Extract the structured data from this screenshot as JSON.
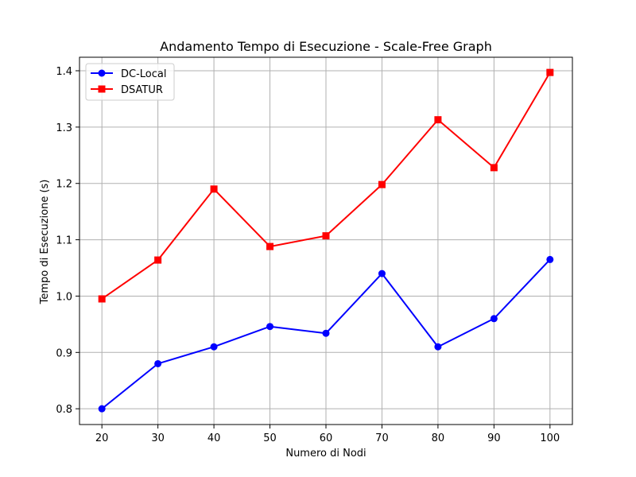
{
  "chart_data": {
    "type": "line",
    "title": "Andamento Tempo di Esecuzione - Scale-Free Graph",
    "xlabel": "Numero di Nodi",
    "ylabel": "Tempo di Esecuzione (s)",
    "x": [
      20,
      30,
      40,
      50,
      60,
      70,
      80,
      90,
      100
    ],
    "xlim": [
      16,
      104
    ],
    "ylim": [
      0.772,
      1.424
    ],
    "xticks": [
      "20",
      "30",
      "40",
      "50",
      "60",
      "70",
      "80",
      "90",
      "100"
    ],
    "xtick_values": [
      20,
      30,
      40,
      50,
      60,
      70,
      80,
      90,
      100
    ],
    "yticks": [
      "0.8",
      "0.9",
      "1.0",
      "1.1",
      "1.2",
      "1.3",
      "1.4"
    ],
    "ytick_values": [
      0.8,
      0.9,
      1.0,
      1.1,
      1.2,
      1.3,
      1.4
    ],
    "grid": true,
    "legend_position": "top-left",
    "series": [
      {
        "name": "DC-Local",
        "color": "#0000ff",
        "marker": "circle",
        "values": [
          0.8,
          0.88,
          0.91,
          0.946,
          0.934,
          1.04,
          0.91,
          0.96,
          1.065
        ]
      },
      {
        "name": "DSATUR",
        "color": "#ff0000",
        "marker": "square",
        "values": [
          0.995,
          1.064,
          1.19,
          1.088,
          1.107,
          1.198,
          1.313,
          1.228,
          1.397
        ]
      }
    ]
  }
}
